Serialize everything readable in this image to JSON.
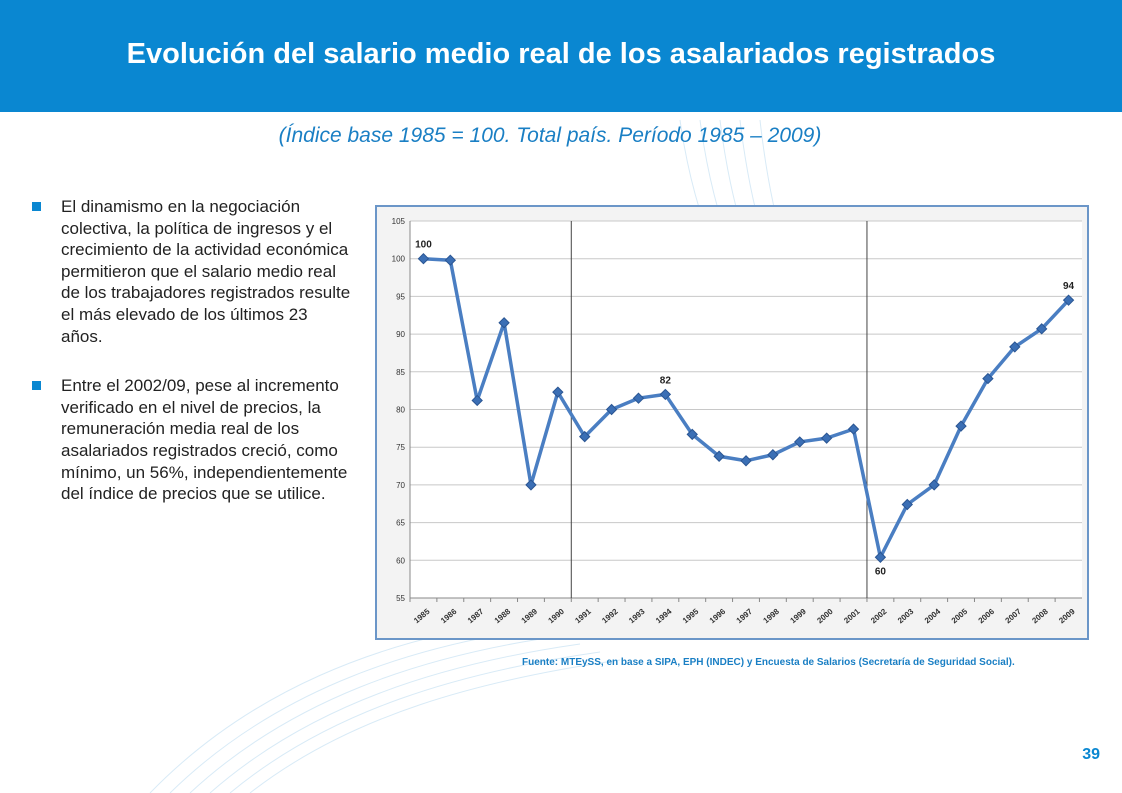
{
  "slide": {
    "title": "Evolución del salario medio real de los asalariados registrados",
    "subtitle": "(Índice base 1985 = 100. Total país. Período 1985 – 2009)",
    "bullets": [
      "El dinamismo en la negociación colectiva, la política de ingresos y el crecimiento de la actividad económica permitieron que el salario medio real de los trabajadores registrados resulte el más elevado de los últimos 23 años.",
      "Entre el 2002/09, pese al incremento verificado en el nivel de precios, la remuneración media real de los asalariados registrados creció, como mínimo, un 56%, independientemente del índice de precios que se utilice."
    ],
    "source": "Fuente: MTEySS, en base a SIPA, EPH (INDEC) y Encuesta de Salarios (Secretaría de Seguridad Social).",
    "page_number": "39",
    "colors": {
      "header": "#0a87d1",
      "accent": "#1a7fc4",
      "line": "#4a7ec2",
      "frame": "#6b96c8"
    }
  },
  "chart_data": {
    "type": "line",
    "title": "",
    "xlabel": "",
    "ylabel": "",
    "categories": [
      "1985",
      "1986",
      "1987",
      "1988",
      "1989",
      "1990",
      "1991",
      "1992",
      "1993",
      "1994",
      "1995",
      "1996",
      "1997",
      "1998",
      "1999",
      "2000",
      "2001",
      "2002",
      "2003",
      "2004",
      "2005",
      "2006",
      "2007",
      "2008",
      "2009"
    ],
    "series": [
      {
        "values": [
          100,
          99.8,
          81.2,
          91.5,
          70,
          82.3,
          76.4,
          80,
          81.5,
          82,
          76.7,
          73.8,
          73.2,
          74,
          75.7,
          76.2,
          77.4,
          60.4,
          67.4,
          70,
          77.8,
          84.1,
          88.3,
          90.7,
          94.5
        ]
      }
    ],
    "ylim": [
      55,
      105
    ],
    "yticks": [
      55,
      60,
      65,
      70,
      75,
      80,
      85,
      90,
      95,
      100,
      105
    ],
    "grid": true,
    "legend": "none",
    "vertical_markers": [
      "1991",
      "2002"
    ],
    "annotations": [
      {
        "category": "1985",
        "text": "100",
        "position": "above"
      },
      {
        "category": "1994",
        "text": "82",
        "position": "above"
      },
      {
        "category": "2002",
        "text": "60",
        "position": "below"
      },
      {
        "category": "2009",
        "text": "94",
        "position": "above"
      }
    ]
  }
}
